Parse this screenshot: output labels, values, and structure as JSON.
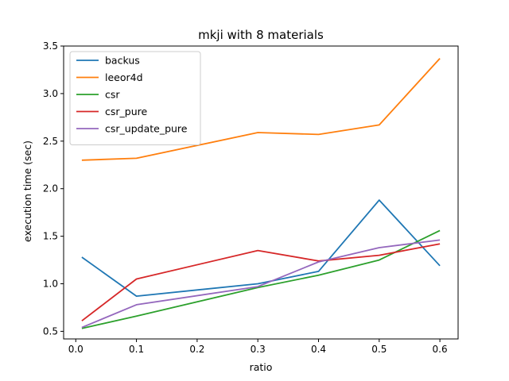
{
  "chart_data": {
    "type": "line",
    "title": "mkji with 8 materials",
    "xlabel": "ratio",
    "ylabel": "execution time (sec)",
    "xlim": [
      -0.02,
      0.63
    ],
    "ylim": [
      0.42,
      3.5
    ],
    "xticks": [
      "0.0",
      "0.1",
      "0.2",
      "0.3",
      "0.4",
      "0.5",
      "0.6"
    ],
    "yticks": [
      "0.5",
      "1.0",
      "1.5",
      "2.0",
      "2.5",
      "3.0",
      "3.5"
    ],
    "grid": false,
    "legend_position": "top-left",
    "x": [
      0.01,
      0.1,
      0.3,
      0.4,
      0.5,
      0.6
    ],
    "series": [
      {
        "name": "backus",
        "color": "#1f77b4",
        "values": [
          1.28,
          0.87,
          1.0,
          1.13,
          1.88,
          1.19
        ]
      },
      {
        "name": "leeor4d",
        "color": "#ff7f0e",
        "values": [
          2.3,
          2.32,
          2.59,
          2.57,
          2.67,
          3.37
        ]
      },
      {
        "name": "csr",
        "color": "#2ca02c",
        "values": [
          0.53,
          0.66,
          0.96,
          1.09,
          1.25,
          1.56
        ]
      },
      {
        "name": "csr_pure",
        "color": "#d62728",
        "values": [
          0.61,
          1.05,
          1.35,
          1.24,
          1.3,
          1.42
        ]
      },
      {
        "name": "csr_update_pure",
        "color": "#9467bd",
        "values": [
          0.54,
          0.78,
          0.97,
          1.23,
          1.38,
          1.46
        ]
      }
    ]
  }
}
